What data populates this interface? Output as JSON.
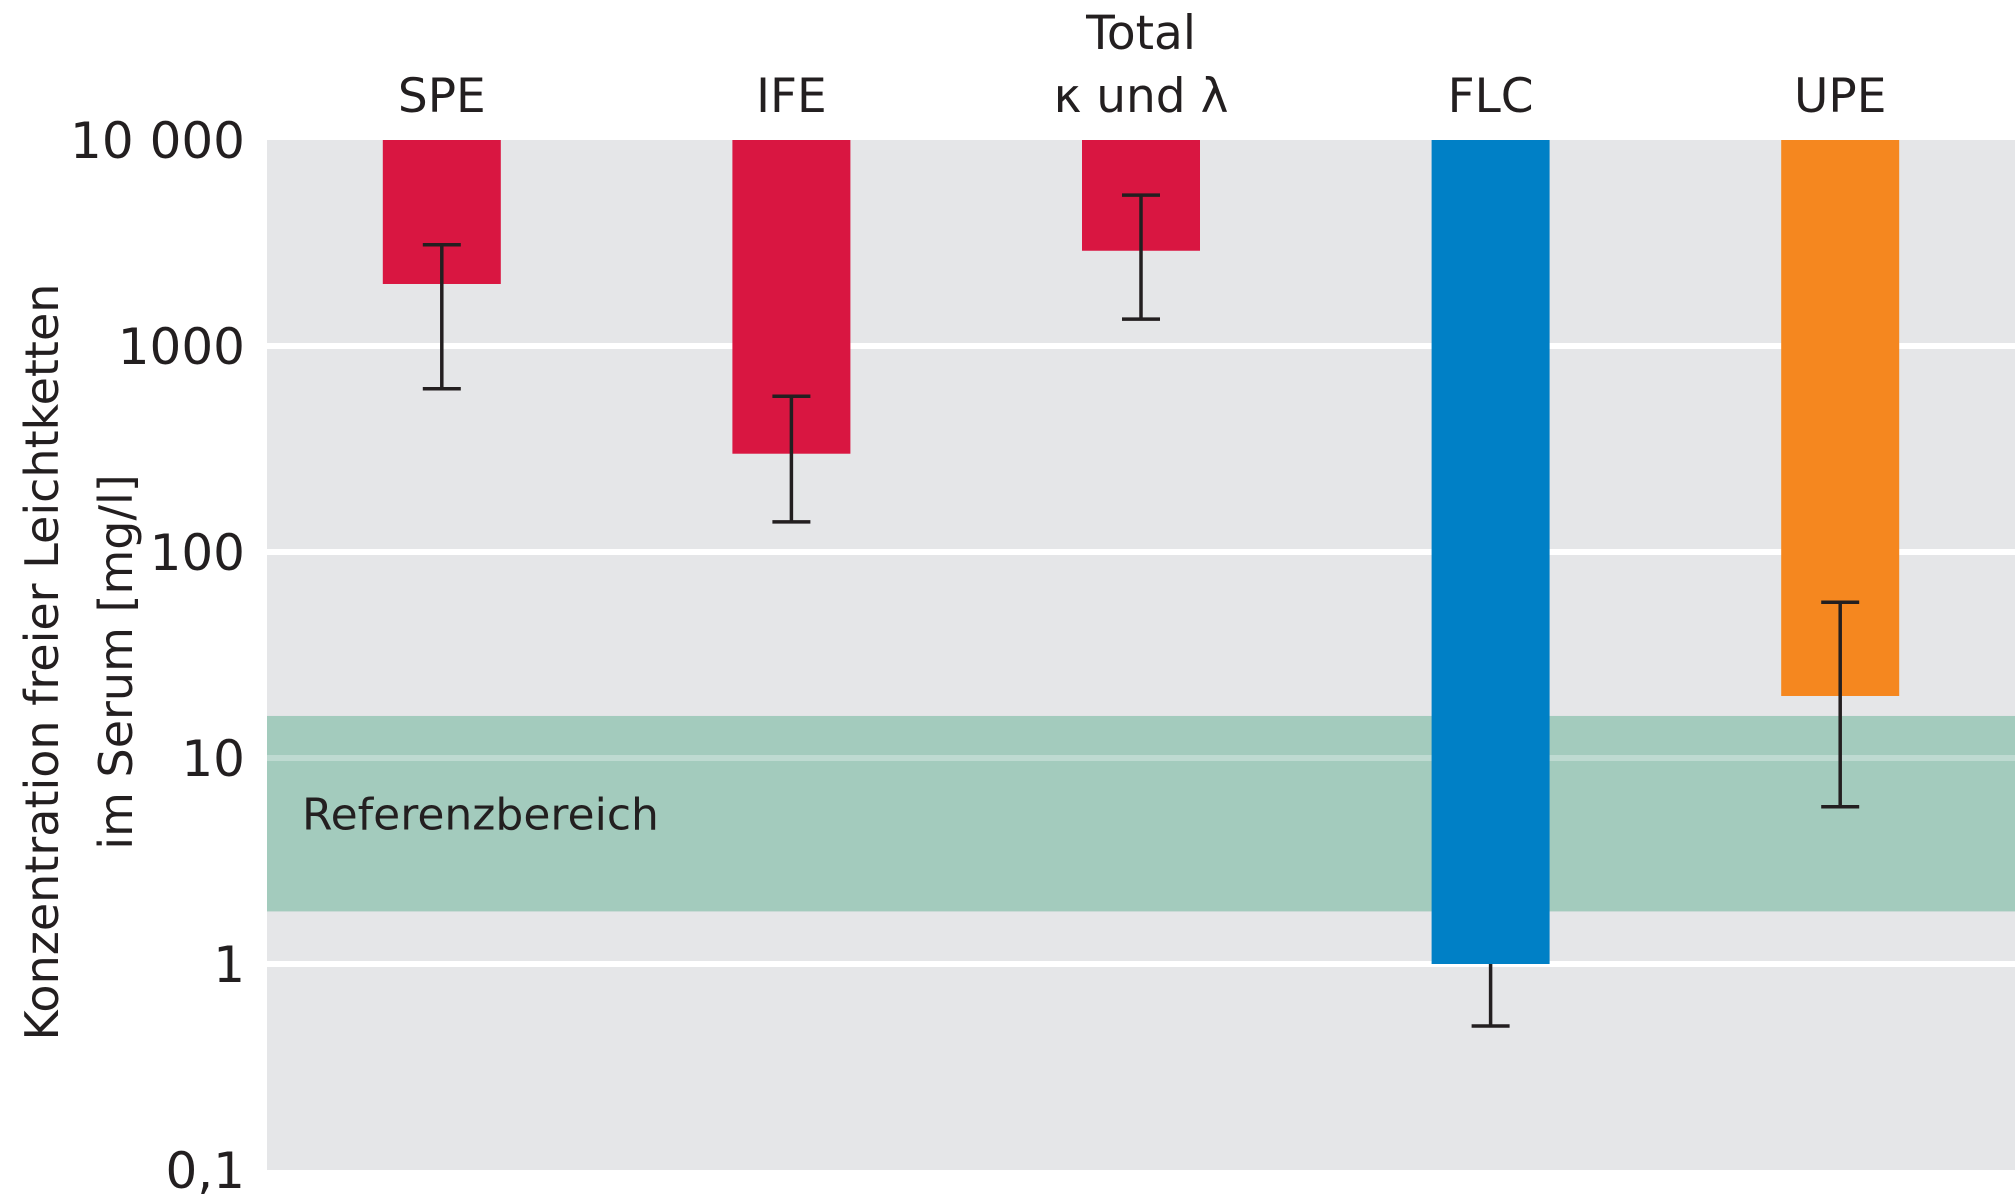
{
  "chart_data": {
    "type": "bar",
    "scale": "log",
    "ylim": [
      0.1,
      10000
    ],
    "ylabel": [
      "Konzentration freier Leichtketten",
      "im Serum [mg/l]"
    ],
    "yticks": [
      {
        "value": 10000,
        "label": "10 000"
      },
      {
        "value": 1000,
        "label": "1000"
      },
      {
        "value": 100,
        "label": "100"
      },
      {
        "value": 10,
        "label": "10"
      },
      {
        "value": 1,
        "label": "1"
      },
      {
        "value": 0.1,
        "label": "0,1"
      }
    ],
    "grid": true,
    "reference_band": {
      "label": "Referenzbereich",
      "low": 1.8,
      "high": 16,
      "color": "#a3cbbd"
    },
    "categories": [
      {
        "label": [
          "SPE"
        ],
        "low": 2000,
        "high": 10000,
        "err_low": 620,
        "err_high": 3100,
        "color": "#d91641"
      },
      {
        "label": [
          "IFE"
        ],
        "low": 300,
        "high": 10000,
        "err_low": 140,
        "err_high": 570,
        "color": "#d91641"
      },
      {
        "label": [
          "Total",
          "κ und λ"
        ],
        "low": 2900,
        "high": 10000,
        "err_low": 1350,
        "err_high": 5400,
        "color": "#d91641"
      },
      {
        "label": [
          "FLC"
        ],
        "low": 1,
        "high": 10000,
        "err_low": 0.5,
        "err_high": null,
        "color": "#0080c6"
      },
      {
        "label": [
          "UPE"
        ],
        "low": 20,
        "high": 10000,
        "err_low": 5.8,
        "err_high": 57,
        "color": "#f5871f"
      }
    ]
  }
}
